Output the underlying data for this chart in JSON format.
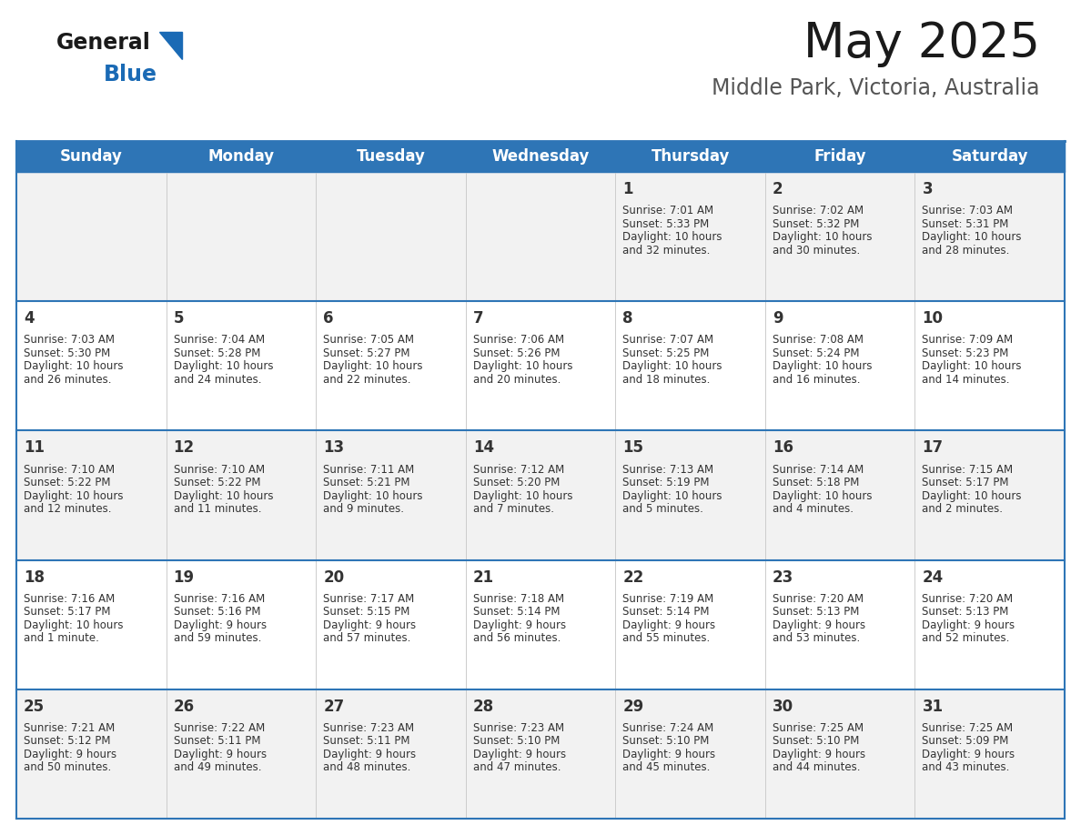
{
  "title": "May 2025",
  "subtitle": "Middle Park, Victoria, Australia",
  "header_color": "#2E75B6",
  "header_text_color": "#FFFFFF",
  "cell_bg_row0": "#F2F2F2",
  "cell_bg_row1": "#FFFFFF",
  "cell_bg_row2": "#F2F2F2",
  "cell_bg_row3": "#FFFFFF",
  "cell_bg_row4": "#F2F2F2",
  "day_names": [
    "Sunday",
    "Monday",
    "Tuesday",
    "Wednesday",
    "Thursday",
    "Friday",
    "Saturday"
  ],
  "days": [
    {
      "day": 1,
      "col": 4,
      "row": 0,
      "sunrise": "7:01 AM",
      "sunset": "5:33 PM",
      "daylight": "10 hours",
      "daylight2": "and 32 minutes."
    },
    {
      "day": 2,
      "col": 5,
      "row": 0,
      "sunrise": "7:02 AM",
      "sunset": "5:32 PM",
      "daylight": "10 hours",
      "daylight2": "and 30 minutes."
    },
    {
      "day": 3,
      "col": 6,
      "row": 0,
      "sunrise": "7:03 AM",
      "sunset": "5:31 PM",
      "daylight": "10 hours",
      "daylight2": "and 28 minutes."
    },
    {
      "day": 4,
      "col": 0,
      "row": 1,
      "sunrise": "7:03 AM",
      "sunset": "5:30 PM",
      "daylight": "10 hours",
      "daylight2": "and 26 minutes."
    },
    {
      "day": 5,
      "col": 1,
      "row": 1,
      "sunrise": "7:04 AM",
      "sunset": "5:28 PM",
      "daylight": "10 hours",
      "daylight2": "and 24 minutes."
    },
    {
      "day": 6,
      "col": 2,
      "row": 1,
      "sunrise": "7:05 AM",
      "sunset": "5:27 PM",
      "daylight": "10 hours",
      "daylight2": "and 22 minutes."
    },
    {
      "day": 7,
      "col": 3,
      "row": 1,
      "sunrise": "7:06 AM",
      "sunset": "5:26 PM",
      "daylight": "10 hours",
      "daylight2": "and 20 minutes."
    },
    {
      "day": 8,
      "col": 4,
      "row": 1,
      "sunrise": "7:07 AM",
      "sunset": "5:25 PM",
      "daylight": "10 hours",
      "daylight2": "and 18 minutes."
    },
    {
      "day": 9,
      "col": 5,
      "row": 1,
      "sunrise": "7:08 AM",
      "sunset": "5:24 PM",
      "daylight": "10 hours",
      "daylight2": "and 16 minutes."
    },
    {
      "day": 10,
      "col": 6,
      "row": 1,
      "sunrise": "7:09 AM",
      "sunset": "5:23 PM",
      "daylight": "10 hours",
      "daylight2": "and 14 minutes."
    },
    {
      "day": 11,
      "col": 0,
      "row": 2,
      "sunrise": "7:10 AM",
      "sunset": "5:22 PM",
      "daylight": "10 hours",
      "daylight2": "and 12 minutes."
    },
    {
      "day": 12,
      "col": 1,
      "row": 2,
      "sunrise": "7:10 AM",
      "sunset": "5:22 PM",
      "daylight": "10 hours",
      "daylight2": "and 11 minutes."
    },
    {
      "day": 13,
      "col": 2,
      "row": 2,
      "sunrise": "7:11 AM",
      "sunset": "5:21 PM",
      "daylight": "10 hours",
      "daylight2": "and 9 minutes."
    },
    {
      "day": 14,
      "col": 3,
      "row": 2,
      "sunrise": "7:12 AM",
      "sunset": "5:20 PM",
      "daylight": "10 hours",
      "daylight2": "and 7 minutes."
    },
    {
      "day": 15,
      "col": 4,
      "row": 2,
      "sunrise": "7:13 AM",
      "sunset": "5:19 PM",
      "daylight": "10 hours",
      "daylight2": "and 5 minutes."
    },
    {
      "day": 16,
      "col": 5,
      "row": 2,
      "sunrise": "7:14 AM",
      "sunset": "5:18 PM",
      "daylight": "10 hours",
      "daylight2": "and 4 minutes."
    },
    {
      "day": 17,
      "col": 6,
      "row": 2,
      "sunrise": "7:15 AM",
      "sunset": "5:17 PM",
      "daylight": "10 hours",
      "daylight2": "and 2 minutes."
    },
    {
      "day": 18,
      "col": 0,
      "row": 3,
      "sunrise": "7:16 AM",
      "sunset": "5:17 PM",
      "daylight": "10 hours",
      "daylight2": "and 1 minute."
    },
    {
      "day": 19,
      "col": 1,
      "row": 3,
      "sunrise": "7:16 AM",
      "sunset": "5:16 PM",
      "daylight": "9 hours",
      "daylight2": "and 59 minutes."
    },
    {
      "day": 20,
      "col": 2,
      "row": 3,
      "sunrise": "7:17 AM",
      "sunset": "5:15 PM",
      "daylight": "9 hours",
      "daylight2": "and 57 minutes."
    },
    {
      "day": 21,
      "col": 3,
      "row": 3,
      "sunrise": "7:18 AM",
      "sunset": "5:14 PM",
      "daylight": "9 hours",
      "daylight2": "and 56 minutes."
    },
    {
      "day": 22,
      "col": 4,
      "row": 3,
      "sunrise": "7:19 AM",
      "sunset": "5:14 PM",
      "daylight": "9 hours",
      "daylight2": "and 55 minutes."
    },
    {
      "day": 23,
      "col": 5,
      "row": 3,
      "sunrise": "7:20 AM",
      "sunset": "5:13 PM",
      "daylight": "9 hours",
      "daylight2": "and 53 minutes."
    },
    {
      "day": 24,
      "col": 6,
      "row": 3,
      "sunrise": "7:20 AM",
      "sunset": "5:13 PM",
      "daylight": "9 hours",
      "daylight2": "and 52 minutes."
    },
    {
      "day": 25,
      "col": 0,
      "row": 4,
      "sunrise": "7:21 AM",
      "sunset": "5:12 PM",
      "daylight": "9 hours",
      "daylight2": "and 50 minutes."
    },
    {
      "day": 26,
      "col": 1,
      "row": 4,
      "sunrise": "7:22 AM",
      "sunset": "5:11 PM",
      "daylight": "9 hours",
      "daylight2": "and 49 minutes."
    },
    {
      "day": 27,
      "col": 2,
      "row": 4,
      "sunrise": "7:23 AM",
      "sunset": "5:11 PM",
      "daylight": "9 hours",
      "daylight2": "and 48 minutes."
    },
    {
      "day": 28,
      "col": 3,
      "row": 4,
      "sunrise": "7:23 AM",
      "sunset": "5:10 PM",
      "daylight": "9 hours",
      "daylight2": "and 47 minutes."
    },
    {
      "day": 29,
      "col": 4,
      "row": 4,
      "sunrise": "7:24 AM",
      "sunset": "5:10 PM",
      "daylight": "9 hours",
      "daylight2": "and 45 minutes."
    },
    {
      "day": 30,
      "col": 5,
      "row": 4,
      "sunrise": "7:25 AM",
      "sunset": "5:10 PM",
      "daylight": "9 hours",
      "daylight2": "and 44 minutes."
    },
    {
      "day": 31,
      "col": 6,
      "row": 4,
      "sunrise": "7:25 AM",
      "sunset": "5:09 PM",
      "daylight": "9 hours",
      "daylight2": "and 43 minutes."
    }
  ],
  "logo_color_general": "#1a1a1a",
  "logo_color_blue": "#1a6ab5",
  "logo_triangle_color": "#1a6ab5",
  "title_fontsize": 38,
  "subtitle_fontsize": 17,
  "header_fontsize": 12,
  "day_num_fontsize": 12,
  "cell_text_fontsize": 8.5,
  "divider_color": "#2E75B6",
  "text_color": "#333333",
  "border_color": "#2E75B6"
}
